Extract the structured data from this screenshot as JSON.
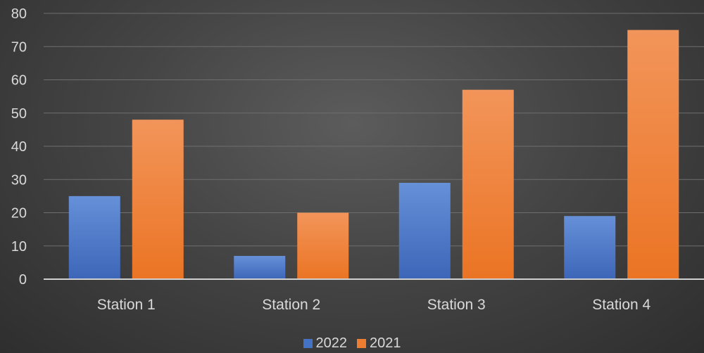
{
  "chart_data": {
    "type": "bar",
    "categories": [
      "Station 1",
      "Station 2",
      "Station 3",
      "Station 4"
    ],
    "series": [
      {
        "name": "2022",
        "values": [
          25,
          7,
          29,
          19
        ],
        "color": "#4472c4"
      },
      {
        "name": "2021",
        "values": [
          48,
          20,
          57,
          75
        ],
        "color": "#ed7d31"
      }
    ],
    "yticks": [
      "0",
      "10",
      "20",
      "30",
      "40",
      "50",
      "60",
      "70",
      "80"
    ],
    "ylim": [
      0,
      80
    ],
    "grid": true,
    "legend_position": "bottom",
    "title": "",
    "xlabel": "",
    "ylabel": ""
  }
}
